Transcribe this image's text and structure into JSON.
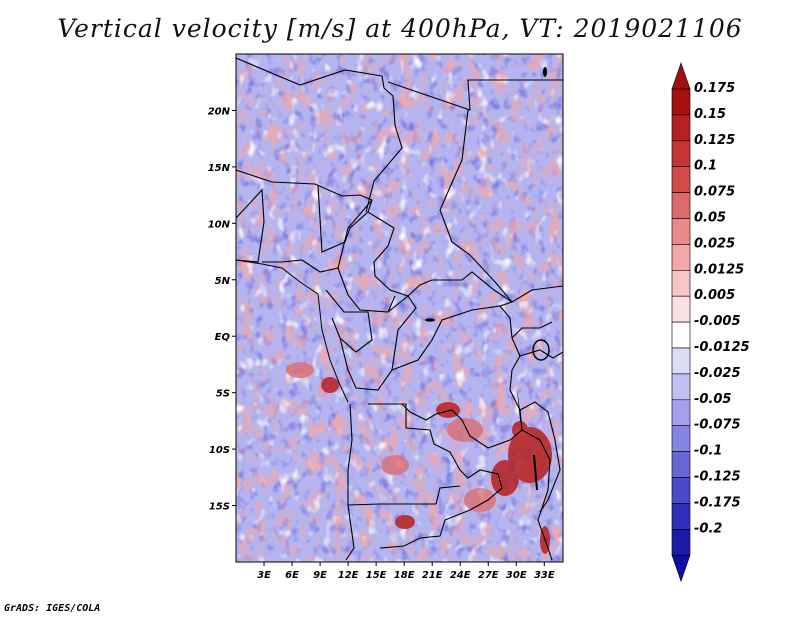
{
  "title": "Vertical velocity [m/s] at 400hPa, VT: 2019021106",
  "credit": "GrADS: IGES/COLA",
  "map": {
    "lon_range": [
      0,
      35
    ],
    "lat_range": [
      -20,
      25
    ],
    "lat_ticks": [
      {
        "value": 20,
        "label": "20N"
      },
      {
        "value": 15,
        "label": "15N"
      },
      {
        "value": 10,
        "label": "10N"
      },
      {
        "value": 5,
        "label": "5N"
      },
      {
        "value": 0,
        "label": "EQ"
      },
      {
        "value": -5,
        "label": "5S"
      },
      {
        "value": -10,
        "label": "10S"
      },
      {
        "value": -15,
        "label": "15S"
      }
    ],
    "lon_ticks": [
      {
        "value": 3,
        "label": "3E"
      },
      {
        "value": 6,
        "label": "6E"
      },
      {
        "value": 9,
        "label": "9E"
      },
      {
        "value": 12,
        "label": "12E"
      },
      {
        "value": 15,
        "label": "15E"
      },
      {
        "value": 18,
        "label": "18E"
      },
      {
        "value": 21,
        "label": "21E"
      },
      {
        "value": 24,
        "label": "24E"
      },
      {
        "value": 27,
        "label": "27E"
      },
      {
        "value": 30,
        "label": "30E"
      },
      {
        "value": 33,
        "label": "33E"
      }
    ]
  },
  "colorbar": {
    "levels": [
      {
        "label": "0.175",
        "color": "#a81010"
      },
      {
        "label": "0.15",
        "color": "#b52020"
      },
      {
        "label": "0.125",
        "color": "#c53535"
      },
      {
        "label": "0.1",
        "color": "#d24b4b"
      },
      {
        "label": "0.075",
        "color": "#dd6a6a"
      },
      {
        "label": "0.05",
        "color": "#e88a8a"
      },
      {
        "label": "0.025",
        "color": "#f1a8a8"
      },
      {
        "label": "0.0125",
        "color": "#f6c5c5"
      },
      {
        "label": "0.005",
        "color": "#fae0e0"
      },
      {
        "label": "-0.005",
        "color": "#ffffff"
      },
      {
        "label": "-0.0125",
        "color": "#dcdcf8"
      },
      {
        "label": "-0.025",
        "color": "#c0c0f3"
      },
      {
        "label": "-0.05",
        "color": "#a2a2ec"
      },
      {
        "label": "-0.075",
        "color": "#8585e4"
      },
      {
        "label": "-0.1",
        "color": "#6767d8"
      },
      {
        "label": "-0.125",
        "color": "#4a4acb"
      },
      {
        "label": "-0.175",
        "color": "#3030bb"
      },
      {
        "label": "-0.2",
        "color": "#1c1ca8"
      }
    ],
    "top_triangle_color": "#a01010",
    "bottom_triangle_color": "#1010a0"
  }
}
